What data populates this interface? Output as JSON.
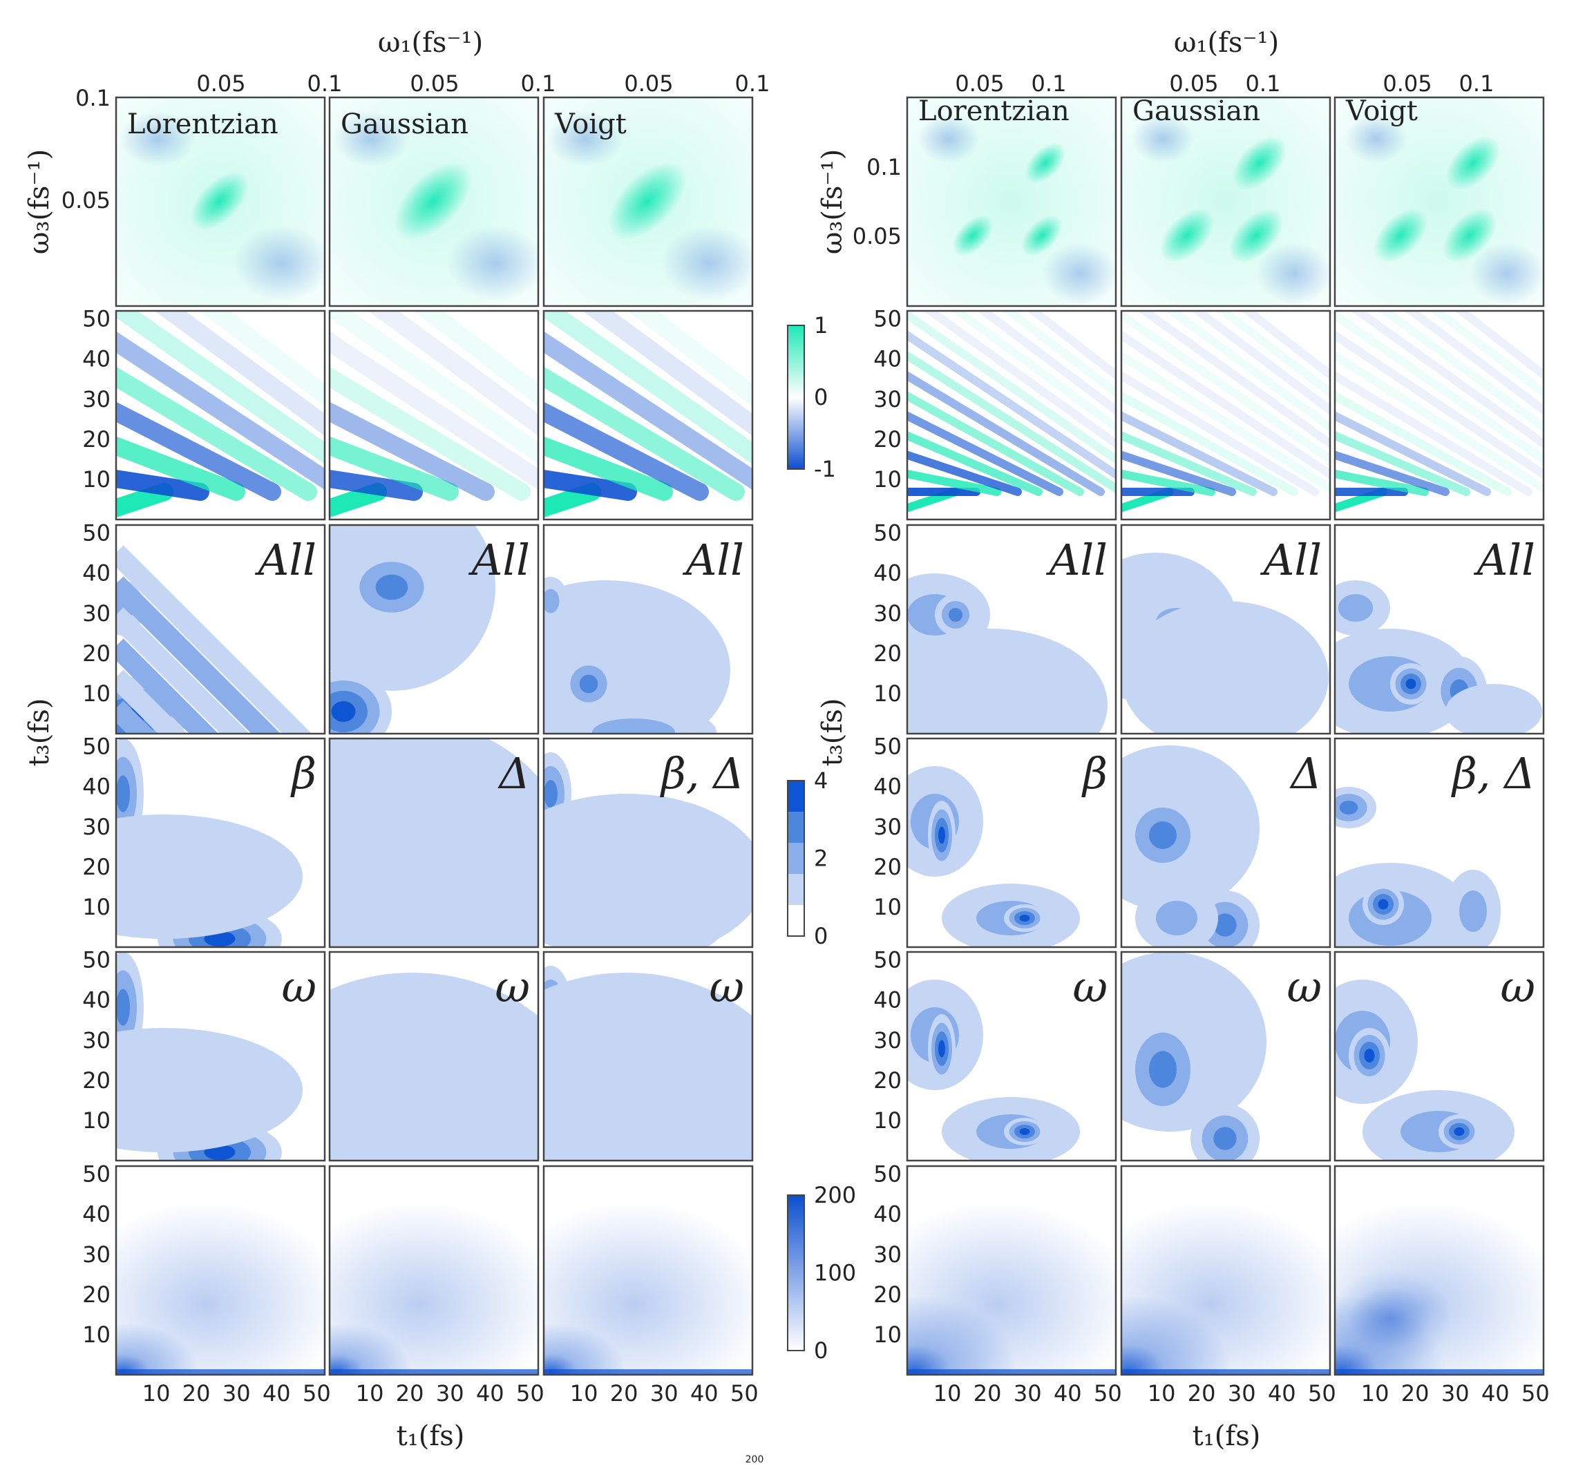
{
  "chart_data": {
    "type": "heatmap",
    "colors": {
      "teal": "#1de9b6",
      "blue": "#0b4fd0",
      "level1": "#c5d6f4",
      "level2": "#8aaeea",
      "level3": "#4d86dd",
      "level4": "#0e55d3",
      "frame": "#444444",
      "text": "#222222"
    },
    "axes": {
      "omega1_label": "ω₁(fs⁻¹)",
      "omega3_label": "ω₃(fs⁻¹)",
      "t1_label": "t₁(fs)",
      "t3_label": "t₃(fs)",
      "left_top_ticks": [
        "0.05",
        "0.1"
      ],
      "left_omega3_ticks": [
        "0.1",
        "0.05"
      ],
      "right_top_ticks": [
        "0.05",
        "0.1"
      ],
      "right_omega3_ticks": [
        "0.1",
        "0.05"
      ],
      "time_ticks": [
        "10",
        "20",
        "30",
        "40",
        "50"
      ]
    },
    "columns": [
      "Lorentzian",
      "Gaussian",
      "Voigt"
    ],
    "row_labels": {
      "all": [
        "All",
        "All",
        "All"
      ],
      "params": [
        "β",
        "Δ",
        "β, Δ"
      ],
      "omega": [
        "ω",
        "ω",
        "ω"
      ]
    },
    "colorbars": {
      "signal": {
        "ticks": [
          "1",
          "0",
          "-1"
        ],
        "range": [
          -1,
          1
        ]
      },
      "sensitivity": {
        "ticks": [
          "4",
          "2",
          "0"
        ],
        "range": [
          0,
          4
        ]
      },
      "counts": {
        "ticks": [
          "200",
          "100",
          "0"
        ],
        "range": [
          0,
          200
        ]
      }
    },
    "footer": "200"
  }
}
